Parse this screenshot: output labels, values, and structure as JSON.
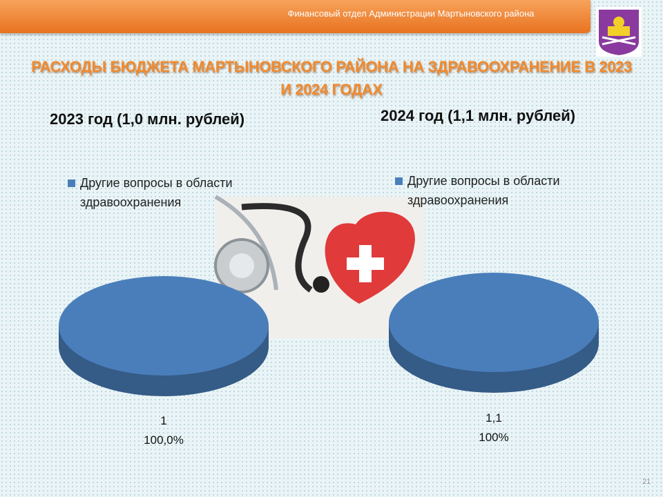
{
  "header": {
    "organization": "Финансовый отдел Администрации Мартыновского района",
    "title": "РАСХОДЫ БЮДЖЕТА МАРТЫНОВСКОГО РАЙОНА НА ЗДРАВООХРАНЕНИЕ В 2023 И 2024 ГОДАХ"
  },
  "chart_data": [
    {
      "type": "pie",
      "title": "2023 год (1,0 млн. рублей)",
      "categories": [
        "Другие вопросы в области здравоохранения"
      ],
      "values": [
        1
      ],
      "percents": [
        100
      ],
      "percent_labels": [
        "100,0%"
      ],
      "colors": [
        "#4a7ebb"
      ]
    },
    {
      "type": "pie",
      "title": "2024 год (1,1 млн. рублей)",
      "categories": [
        "Другие вопросы в области здравоохранения"
      ],
      "values": [
        1.1
      ],
      "value_labels": [
        "1,1"
      ],
      "percents": [
        100
      ],
      "percent_labels": [
        "100%"
      ],
      "colors": [
        "#4a7ebb"
      ]
    }
  ],
  "page_number": "21"
}
